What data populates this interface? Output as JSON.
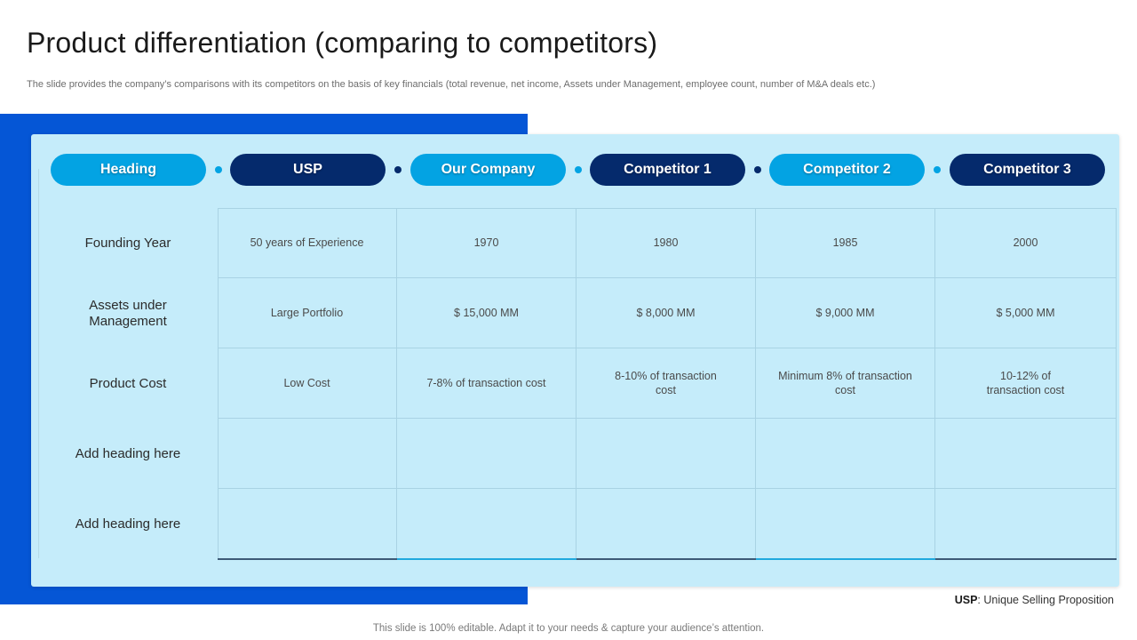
{
  "title": "Product differentiation (comparing to competitors)",
  "subtitle": "The slide provides the company’s comparisons with its competitors on the basis of key financials (total revenue, net income, Assets under Management, employee count, number of M&A  deals etc.)",
  "headers": [
    "Heading",
    "USP",
    "Our Company",
    "Competitor 1",
    "Competitor 2",
    "Competitor 3"
  ],
  "rows": [
    {
      "heading": "Founding Year",
      "cells": [
        "50 years of Experience",
        "1970",
        "1980",
        "1985",
        "2000"
      ]
    },
    {
      "heading": "Assets under Management",
      "cells": [
        "Large Portfolio",
        "$ 15,000 MM",
        "$ 8,000 MM",
        "$ 9,000 MM",
        "$ 5,000 MM"
      ]
    },
    {
      "heading": "Product Cost",
      "cells": [
        "Low Cost",
        "7-8% of transaction cost",
        "8-10% of transaction cost",
        "Minimum 8% of transaction cost",
        "10-12% of transaction cost"
      ]
    },
    {
      "heading": "Add heading here",
      "cells": [
        "",
        "",
        "",
        "",
        ""
      ]
    },
    {
      "heading": "Add heading here",
      "cells": [
        "",
        "",
        "",
        "",
        ""
      ]
    }
  ],
  "footnote": {
    "abbr": "USP",
    "text": ": Unique Selling Proposition"
  },
  "footer": "This slide is 100% editable. Adapt it to your needs & capture your audience’s attention.",
  "colors": {
    "accent_light": "#03a3e3",
    "accent_dark": "#052a6c",
    "block_blue": "#0556d6",
    "panel": "#c5ecfa"
  }
}
